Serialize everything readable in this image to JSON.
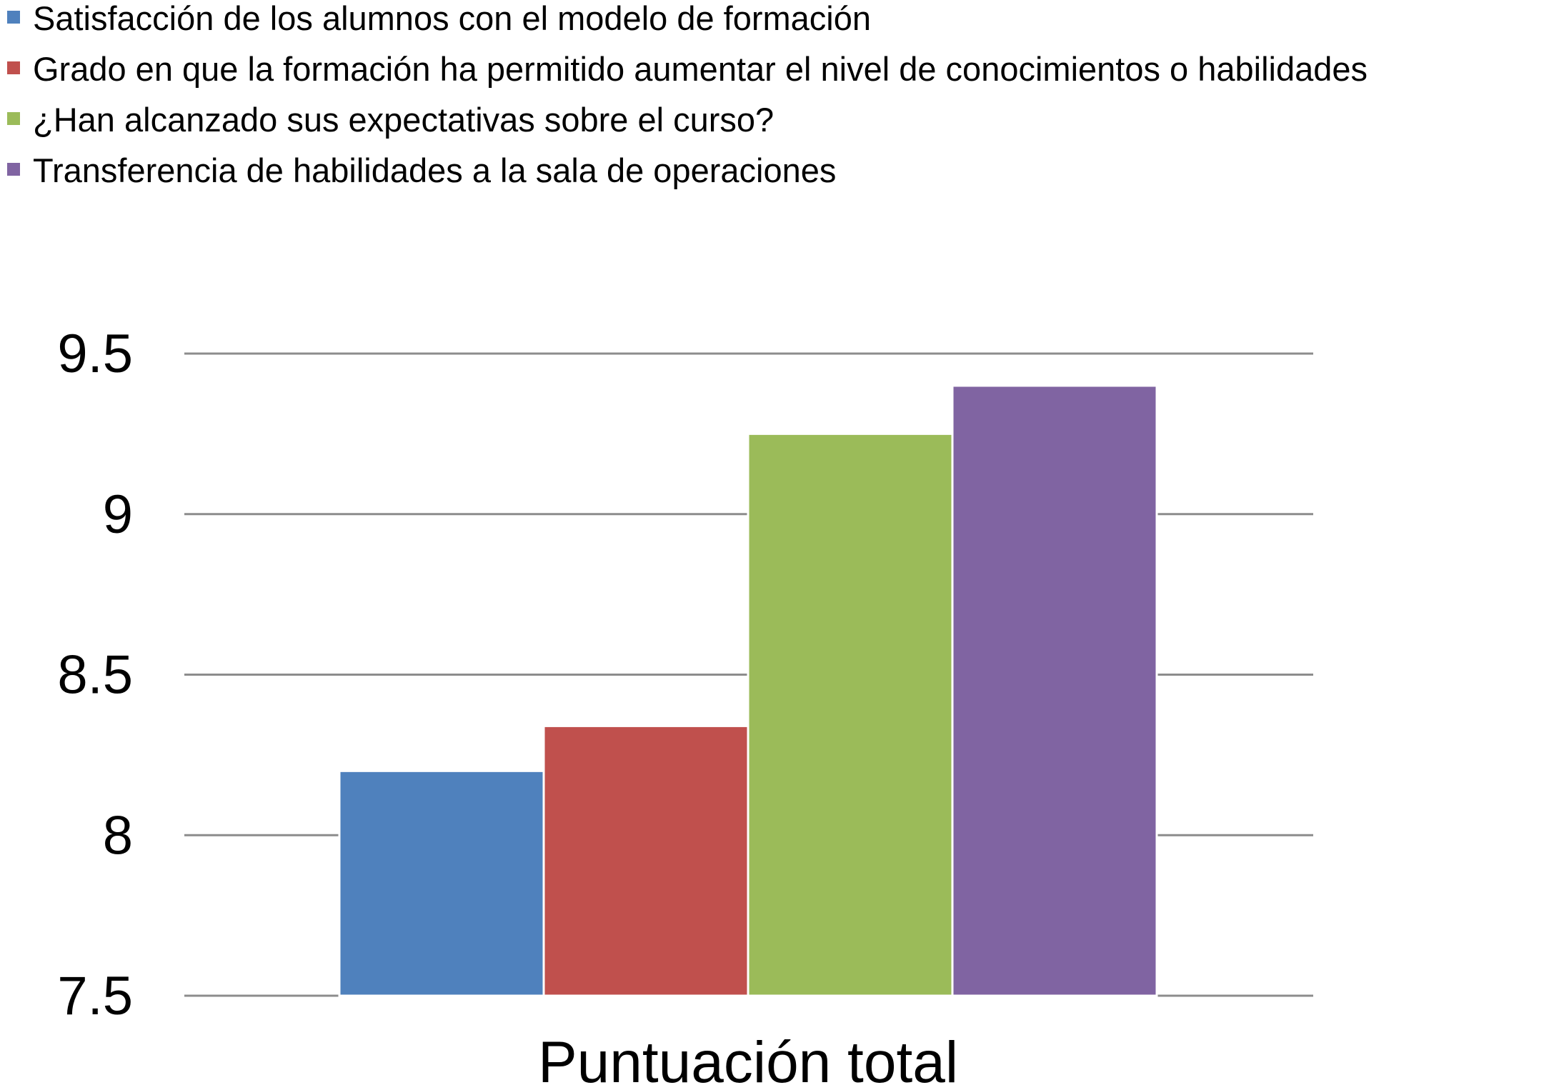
{
  "chart_data": {
    "type": "bar",
    "title": "",
    "xlabel": "",
    "ylabel": "",
    "categories": [
      "Puntuación total"
    ],
    "ylim": [
      7.5,
      9.5
    ],
    "yticks": [
      "7.5",
      "8",
      "8.5",
      "9",
      "9.5"
    ],
    "grid": true,
    "legend_position": "top-left",
    "series": [
      {
        "name": "Satisfacción de los alumnos con el modelo de formación",
        "values": [
          8.2
        ],
        "color": "#4F81BD"
      },
      {
        "name": "Grado en que la formación ha permitido aumentar el nivel de conocimientos o habilidades",
        "values": [
          8.34
        ],
        "color": "#C0504D"
      },
      {
        "name": "¿Han alcanzado sus expectativas sobre el curso?",
        "values": [
          9.25
        ],
        "color": "#9BBB59"
      },
      {
        "name": "Transferencia de habilidades a la sala de operaciones",
        "values": [
          9.4
        ],
        "color": "#8064A2"
      }
    ]
  }
}
